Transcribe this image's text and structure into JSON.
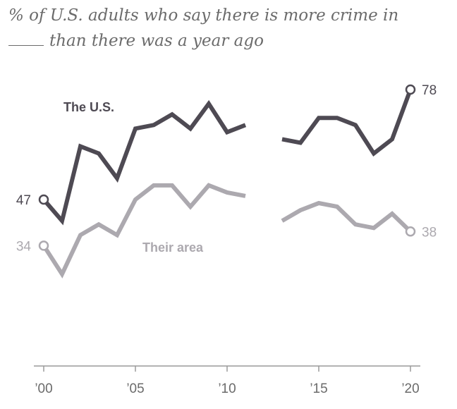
{
  "chart_data": {
    "type": "line",
    "title_line1": "% of U.S. adults who say there is more crime in",
    "title_line2": "than there was a year ago",
    "xlabel": "",
    "ylabel": "",
    "x": [
      2000,
      2001,
      2002,
      2003,
      2004,
      2005,
      2006,
      2007,
      2008,
      2009,
      2010,
      2011,
      2013,
      2014,
      2015,
      2016,
      2017,
      2018,
      2019,
      2020
    ],
    "xlim": [
      2000,
      2020
    ],
    "ylim": [
      20,
      80
    ],
    "x_ticks": [
      2000,
      2005,
      2010,
      2015,
      2020
    ],
    "x_tick_labels": [
      "’00",
      "’05",
      "’10",
      "’15",
      "’20"
    ],
    "series": [
      {
        "name": "The U.S.",
        "color": "#4e4a53",
        "values": [
          47,
          41,
          62,
          60,
          53,
          67,
          68,
          71,
          67,
          74,
          66,
          68,
          64,
          63,
          70,
          70,
          68,
          60,
          64,
          78
        ]
      },
      {
        "name": "Their area",
        "color": "#aca9af",
        "values": [
          34,
          26,
          37,
          40,
          37,
          47,
          51,
          51,
          45,
          51,
          49,
          48,
          41,
          44,
          46,
          45,
          40,
          39,
          43,
          38
        ]
      }
    ],
    "start_labels": [
      "47",
      "34"
    ],
    "end_labels": [
      "78",
      "38"
    ],
    "gap_after": 2011
  }
}
